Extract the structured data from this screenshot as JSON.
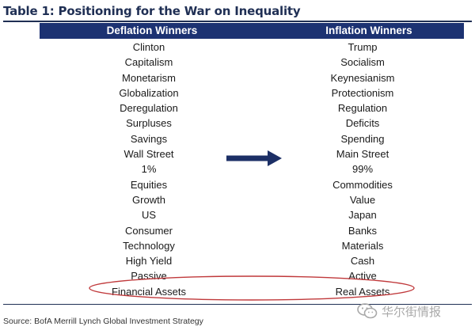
{
  "table": {
    "title": "Table 1: Positioning for the War on Inequality",
    "headers": {
      "left": "Deflation Winners",
      "right": "Inflation Winners"
    },
    "rows": [
      {
        "deflation": "Clinton",
        "inflation": "Trump"
      },
      {
        "deflation": "Capitalism",
        "inflation": "Socialism"
      },
      {
        "deflation": "Monetarism",
        "inflation": "Keynesianism"
      },
      {
        "deflation": "Globalization",
        "inflation": "Protectionism"
      },
      {
        "deflation": "Deregulation",
        "inflation": "Regulation"
      },
      {
        "deflation": "Surpluses",
        "inflation": "Deficits"
      },
      {
        "deflation": "Savings",
        "inflation": "Spending"
      },
      {
        "deflation": "Wall Street",
        "inflation": "Main Street"
      },
      {
        "deflation": "1%",
        "inflation": "99%"
      },
      {
        "deflation": "Equities",
        "inflation": "Commodities"
      },
      {
        "deflation": "Growth",
        "inflation": "Value"
      },
      {
        "deflation": "US",
        "inflation": "Japan"
      },
      {
        "deflation": "Consumer",
        "inflation": "Banks"
      },
      {
        "deflation": "Technology",
        "inflation": "Materials"
      },
      {
        "deflation": "High Yield",
        "inflation": "Cash"
      },
      {
        "deflation": "Passive",
        "inflation": "Active"
      },
      {
        "deflation": "Financial Assets",
        "inflation": "Real Assets"
      }
    ],
    "highlighted_row": "Financial Assets / Real Assets",
    "source": "Source: BofA Merrill Lynch Global Investment Strategy"
  },
  "watermark": {
    "text": "华尔街情报",
    "icon": "wechat-icon"
  },
  "colors": {
    "header_bg": "#1c3272",
    "arrow": "#1c2f66",
    "highlight_oval": "#c0393b",
    "title": "#1f2f54"
  }
}
